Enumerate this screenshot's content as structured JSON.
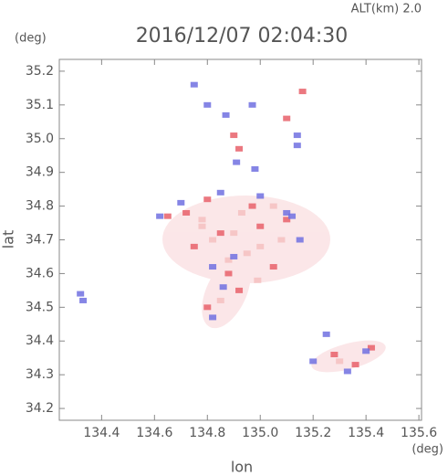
{
  "chart_data": {
    "type": "scatter",
    "title": "2016/12/07 02:04:30",
    "subtitle": "ALT(km) 2.0",
    "y_unit": "(deg)",
    "x_unit": "(deg)",
    "x_label": "lon",
    "y_label": "lat",
    "xlim": [
      134.24,
      135.61
    ],
    "ylim": [
      34.165,
      35.235
    ],
    "xticks": [
      134.4,
      134.6,
      134.8,
      {
        "value": 135,
        "label": "135.0"
      },
      135.2,
      135.4,
      135.6
    ],
    "yticks": [
      34.2,
      34.3,
      34.4,
      34.5,
      34.6,
      34.7,
      34.8,
      34.9,
      {
        "value": 35,
        "label": "35.0"
      },
      35.1,
      35.2
    ],
    "series": [
      {
        "color": "#f4c0c0",
        "x": [
          134.78,
          134.9,
          134.82,
          135.0,
          135.08,
          134.95,
          134.88,
          134.93,
          134.78,
          135.05,
          135.3,
          134.85,
          134.99
        ],
        "values": [
          34.76,
          34.72,
          34.7,
          34.68,
          34.7,
          34.66,
          34.64,
          34.78,
          34.74,
          34.8,
          34.34,
          34.52,
          34.58
        ]
      },
      {
        "color": "#e8606a",
        "x": [
          135.16,
          135.1,
          134.9,
          134.92,
          134.72,
          134.8,
          134.85,
          134.75,
          135.0,
          135.05,
          134.92,
          134.88,
          134.97,
          135.1,
          134.8,
          135.28,
          135.36,
          135.42,
          134.65
        ],
        "values": [
          35.14,
          35.06,
          35.01,
          34.97,
          34.78,
          34.82,
          34.72,
          34.68,
          34.74,
          34.62,
          34.55,
          34.6,
          34.8,
          34.76,
          34.5,
          34.36,
          34.33,
          34.38,
          34.77
        ]
      },
      {
        "color": "#7070e0",
        "x": [
          134.75,
          134.8,
          134.87,
          134.97,
          135.14,
          135.14,
          135.12,
          134.91,
          134.62,
          134.7,
          134.85,
          135.0,
          135.1,
          135.15,
          134.9,
          134.86,
          135.25,
          135.2,
          135.33,
          135.4,
          134.32,
          134.33,
          134.82,
          134.98,
          134.82
        ],
        "values": [
          35.16,
          35.1,
          35.07,
          35.1,
          35.01,
          34.98,
          34.77,
          34.93,
          34.77,
          34.81,
          34.84,
          34.83,
          34.78,
          34.7,
          34.65,
          34.56,
          34.42,
          34.34,
          34.31,
          34.37,
          34.54,
          34.52,
          34.62,
          34.91,
          34.47
        ]
      }
    ]
  }
}
